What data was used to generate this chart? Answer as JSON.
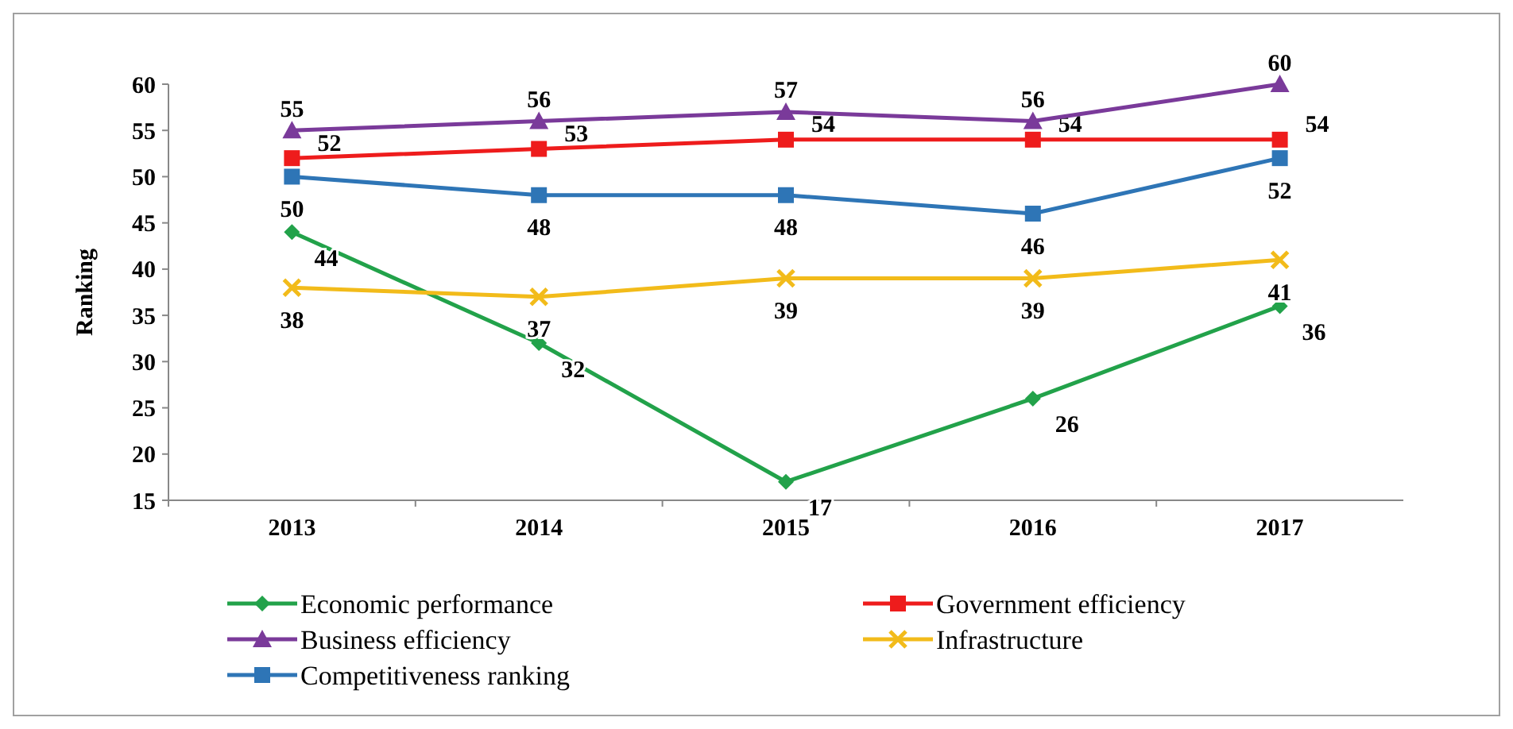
{
  "chart_data": {
    "type": "line",
    "ylabel": "Ranking",
    "categories": [
      "2013",
      "2014",
      "2015",
      "2016",
      "2017"
    ],
    "ylim": [
      15,
      60
    ],
    "yticks": [
      15,
      20,
      25,
      30,
      35,
      40,
      45,
      50,
      55,
      60
    ],
    "grid": false,
    "legend": "bottom",
    "data_labels": true,
    "line_style": "solid",
    "series": [
      {
        "name": "Economic performance",
        "color": "#22a24a",
        "marker": "diamond",
        "values": [
          44,
          32,
          17,
          26,
          36
        ]
      },
      {
        "name": "Government efficiency",
        "color": "#ee1c1c",
        "marker": "square",
        "values": [
          52,
          53,
          54,
          54,
          54
        ]
      },
      {
        "name": "Business efficiency",
        "color": "#7a3a9a",
        "marker": "triangle",
        "values": [
          55,
          56,
          57,
          56,
          60
        ]
      },
      {
        "name": "Infrastructure",
        "color": "#f2bb1a",
        "marker": "cross",
        "values": [
          38,
          37,
          39,
          39,
          41
        ]
      },
      {
        "name": "Competitiveness ranking",
        "color": "#2e75b6",
        "marker": "square",
        "values": [
          50,
          48,
          48,
          46,
          52
        ]
      }
    ]
  }
}
